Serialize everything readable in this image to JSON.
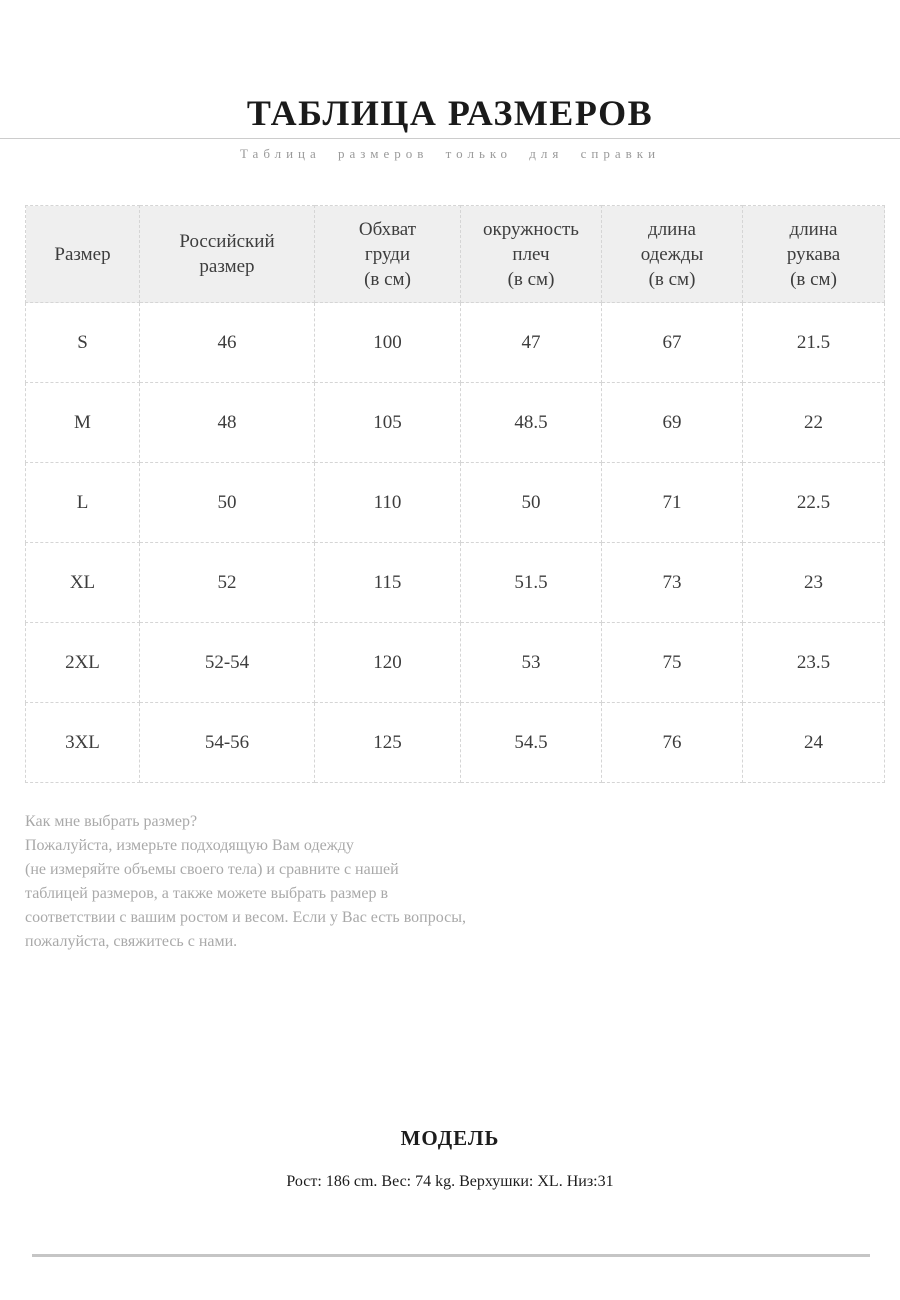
{
  "page": {
    "title": "ТАБЛИЦА РАЗМЕРОВ",
    "subtitle": "Таблица размеров только для справки"
  },
  "size_table": {
    "columns": [
      {
        "lines": [
          "Размер"
        ]
      },
      {
        "lines": [
          "Российский",
          "размер"
        ]
      },
      {
        "lines": [
          "Обхват",
          "груди",
          "(в см)"
        ]
      },
      {
        "lines": [
          "окружность",
          "плеч",
          "(в см)"
        ]
      },
      {
        "lines": [
          "длина",
          "одежды",
          "(в см)"
        ]
      },
      {
        "lines": [
          "длина",
          "рукава",
          "(в см)"
        ]
      }
    ],
    "rows": [
      [
        "S",
        "46",
        "100",
        "47",
        "67",
        "21.5"
      ],
      [
        "M",
        "48",
        "105",
        "48.5",
        "69",
        "22"
      ],
      [
        "L",
        "50",
        "110",
        "50",
        "71",
        "22.5"
      ],
      [
        "XL",
        "52",
        "115",
        "51.5",
        "73",
        "23"
      ],
      [
        "2XL",
        "52-54",
        "120",
        "53",
        "75",
        "23.5"
      ],
      [
        "3XL",
        "54-56",
        "125",
        "54.5",
        "76",
        "24"
      ]
    ]
  },
  "help_text": {
    "lines": [
      "Как мне выбрать размер?",
      "Пожалуйста, измерьте подходящую Вам одежду",
      "(не измеряйте объемы своего тела) и сравните с нашей",
      "таблицей размеров, а также можете выбрать размер в",
      "соответствии с вашим ростом и весом. Если у Вас есть вопросы,",
      "пожалуйста, свяжитесь с нами."
    ]
  },
  "model": {
    "heading": "МОДЕЛЬ",
    "details": "Рост: 186 cm. Вес: 74 kg. Верхушки: XL. Низ:31"
  },
  "colors": {
    "header_background": "#efefef",
    "table_border": "#d5d5d5",
    "body_text": "#3d3d3d",
    "muted_text": "#a9a9a9",
    "divider": "#cccccc",
    "footer_bar": "#c5c5c5"
  }
}
